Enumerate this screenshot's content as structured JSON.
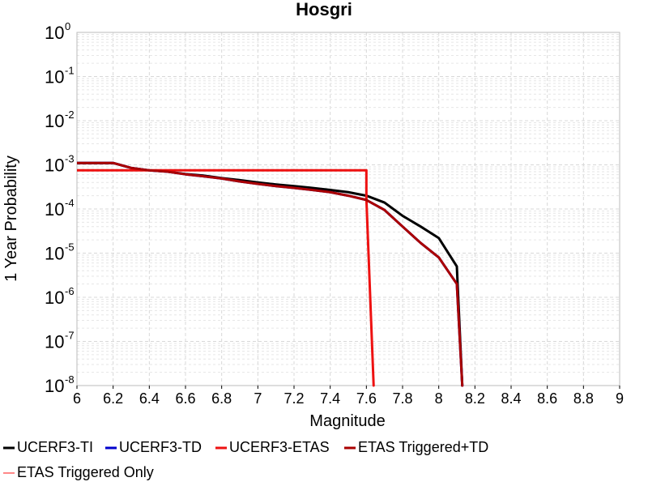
{
  "chart_data": {
    "type": "line",
    "title": "Hosgri",
    "xlabel": "Magnitude",
    "ylabel": "1 Year Probability",
    "xlim": [
      6,
      9
    ],
    "ylim": [
      1e-08,
      1
    ],
    "yscale": "log",
    "grid": true,
    "legend_position": "bottom",
    "x_ticks": [
      "6",
      "6.2",
      "6.4",
      "6.6",
      "6.8",
      "7",
      "7.2",
      "7.4",
      "7.6",
      "7.8",
      "8",
      "8.2",
      "8.4",
      "8.6",
      "8.8",
      "9"
    ],
    "y_ticks": [
      {
        "base": "10",
        "exp": "0",
        "value": 1
      },
      {
        "base": "10",
        "exp": "-1",
        "value": 0.1
      },
      {
        "base": "10",
        "exp": "-2",
        "value": 0.01
      },
      {
        "base": "10",
        "exp": "-3",
        "value": 0.001
      },
      {
        "base": "10",
        "exp": "-4",
        "value": 0.0001
      },
      {
        "base": "10",
        "exp": "-5",
        "value": 1e-05
      },
      {
        "base": "10",
        "exp": "-6",
        "value": 1e-06
      },
      {
        "base": "10",
        "exp": "-7",
        "value": 1e-07
      },
      {
        "base": "10",
        "exp": "-8",
        "value": 1e-08
      }
    ],
    "series": [
      {
        "name": "UCERF3-TI",
        "color": "#000000",
        "x": [
          6.0,
          6.1,
          6.2,
          6.3,
          6.4,
          6.5,
          6.6,
          6.7,
          6.8,
          6.9,
          7.0,
          7.1,
          7.2,
          7.3,
          7.4,
          7.5,
          7.6,
          7.7,
          7.8,
          7.9,
          8.0,
          8.1,
          8.13
        ],
        "y": [
          0.0011,
          0.0011,
          0.0011,
          0.00085,
          0.00075,
          0.0007,
          0.00062,
          0.00057,
          0.0005,
          0.00045,
          0.0004,
          0.00036,
          0.00033,
          0.0003,
          0.00027,
          0.00024,
          0.0002,
          0.00014,
          7e-05,
          4e-05,
          2.2e-05,
          5e-06,
          1e-08
        ]
      },
      {
        "name": "UCERF3-TD",
        "color": "#0000cc",
        "x": [
          6.0,
          6.1,
          6.2,
          6.3,
          6.4,
          6.5,
          6.6,
          6.7,
          6.8,
          6.9,
          7.0,
          7.1,
          7.2,
          7.3,
          7.4,
          7.5,
          7.6,
          7.7,
          7.8,
          7.9,
          8.0,
          8.1,
          8.13
        ],
        "y": [
          0.0011,
          0.0011,
          0.0011,
          0.00085,
          0.00075,
          0.0007,
          0.00061,
          0.00055,
          0.00049,
          0.00042,
          0.00037,
          0.00033,
          0.0003,
          0.00027,
          0.00024,
          0.0002,
          0.00016,
          9.5e-05,
          4e-05,
          1.7e-05,
          8e-06,
          2e-06,
          1e-08
        ]
      },
      {
        "name": "UCERF3-ETAS",
        "color": "#ee1111",
        "x": [
          6.0,
          7.6,
          7.6,
          7.64
        ],
        "y": [
          0.00075,
          0.00075,
          0.00017,
          1e-08
        ]
      },
      {
        "name": "ETAS Triggered+TD",
        "color": "#aa0000",
        "x": [
          6.0,
          6.1,
          6.2,
          6.3,
          6.4,
          6.5,
          6.6,
          6.7,
          6.8,
          6.9,
          7.0,
          7.1,
          7.2,
          7.3,
          7.4,
          7.5,
          7.6,
          7.7,
          7.8,
          7.9,
          8.0,
          8.1,
          8.13
        ],
        "y": [
          0.0011,
          0.0011,
          0.0011,
          0.00085,
          0.00075,
          0.0007,
          0.00061,
          0.00055,
          0.00049,
          0.00042,
          0.00037,
          0.00033,
          0.0003,
          0.00027,
          0.00024,
          0.0002,
          0.00016,
          9.5e-05,
          4e-05,
          1.7e-05,
          8e-06,
          2e-06,
          1e-08
        ]
      },
      {
        "name": "ETAS Triggered Only",
        "color": "#ff8888",
        "x": [],
        "y": []
      }
    ]
  }
}
